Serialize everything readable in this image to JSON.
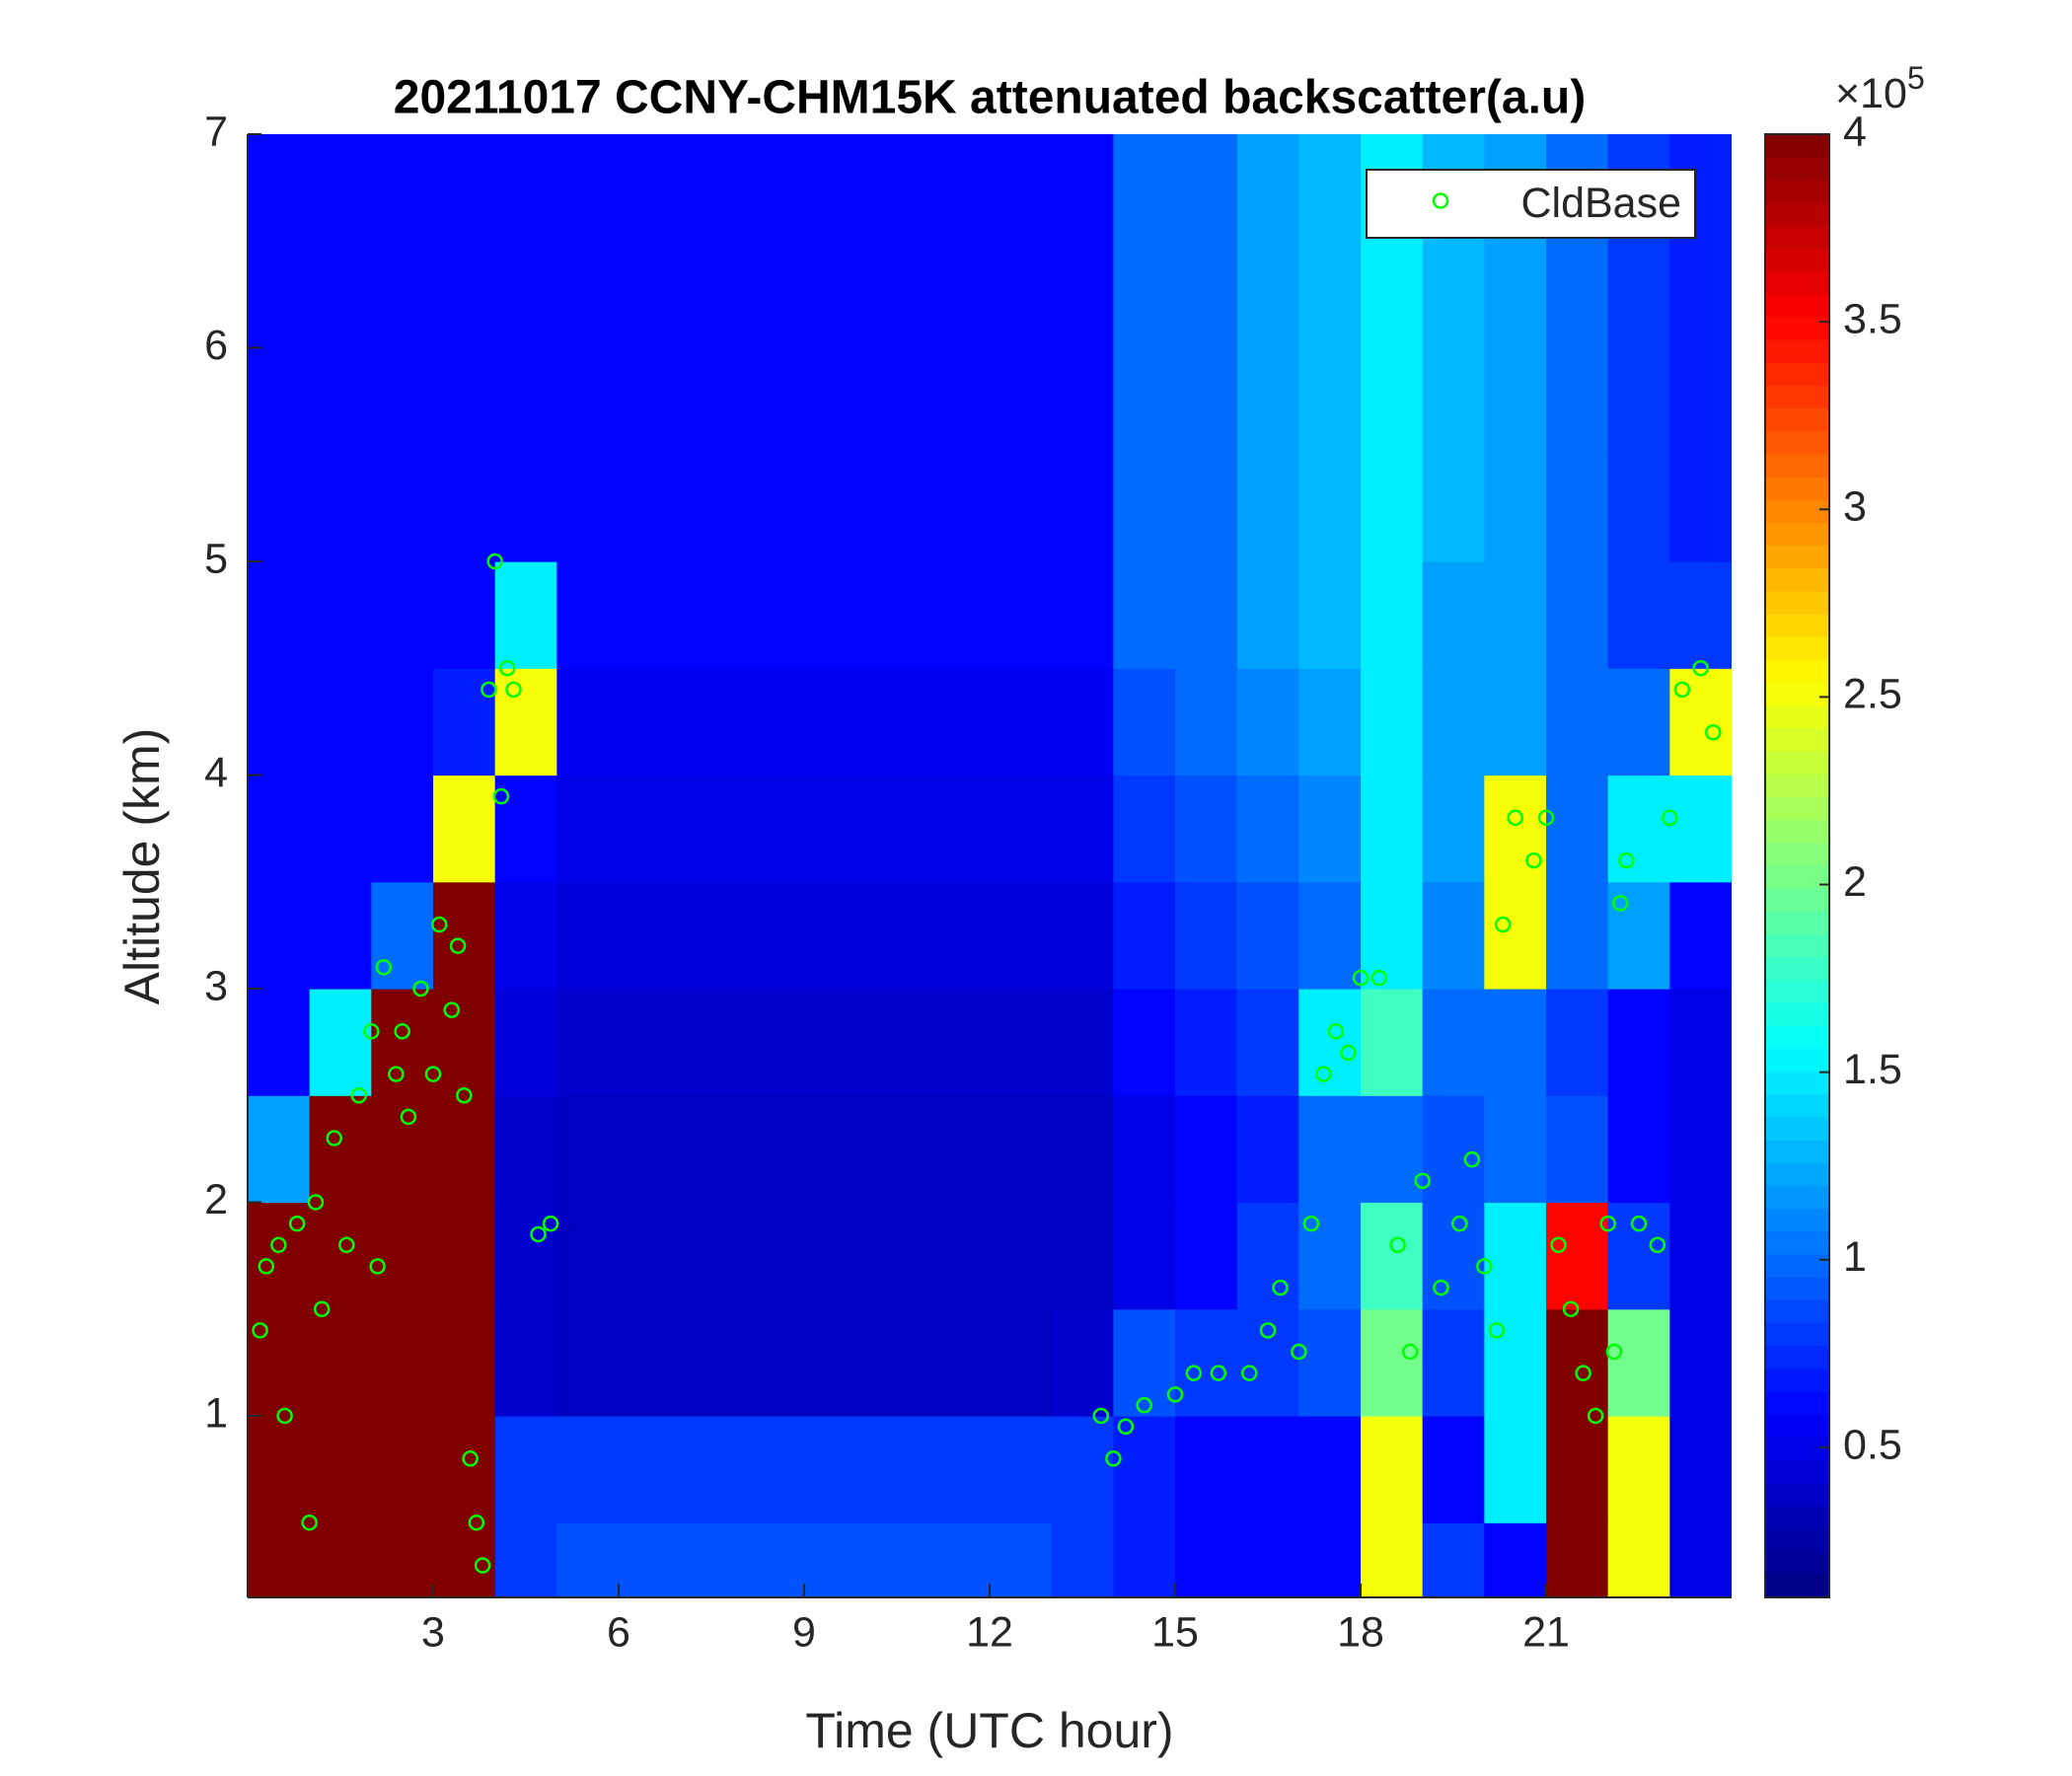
{
  "chart_data": {
    "type": "heatmap",
    "title": "20211017 CCNY-CHM15K attenuated backscatter(a.u)",
    "xlabel": "Time (UTC hour)",
    "ylabel": "Altitude (km)",
    "xlim": [
      0,
      24
    ],
    "xticks": [
      3,
      6,
      9,
      12,
      15,
      18,
      21
    ],
    "ylim": [
      0.15,
      7
    ],
    "yticks": [
      1,
      2,
      3,
      4,
      5,
      6,
      7
    ],
    "colorbar": {
      "colormap": "jet",
      "clim": [
        0.1,
        4
      ],
      "cticks": [
        0.5,
        1,
        1.5,
        2,
        2.5,
        3,
        3.5,
        4
      ],
      "multiplier": {
        "base": "×10",
        "exponent": "5"
      }
    },
    "heatmap": {
      "x_bins": [
        0,
        1,
        2,
        3,
        4,
        5,
        6,
        7,
        8,
        9,
        10,
        11,
        12,
        13,
        14,
        15,
        16,
        17,
        18,
        19,
        20,
        21,
        22,
        23,
        24
      ],
      "y_bins": [
        0.15,
        0.5,
        1,
        1.5,
        2,
        2.5,
        3,
        3.5,
        4,
        4.5,
        5,
        5.5,
        6,
        6.5,
        7
      ],
      "values": [
        [
          4,
          4,
          4,
          4,
          0.8,
          0.9,
          0.9,
          0.9,
          0.9,
          0.9,
          0.9,
          0.9,
          0.9,
          0.8,
          0.7,
          0.6,
          0.6,
          0.6,
          2.5,
          0.8,
          0.6,
          4,
          2.5,
          0.5
        ],
        [
          4,
          4,
          4,
          4,
          0.8,
          0.8,
          0.8,
          0.8,
          0.8,
          0.8,
          0.8,
          0.8,
          0.8,
          0.8,
          0.7,
          0.6,
          0.6,
          0.6,
          2.5,
          0.6,
          1.5,
          4,
          2.5,
          0.5
        ],
        [
          4,
          4,
          4,
          4,
          0.4,
          0.35,
          0.35,
          0.35,
          0.35,
          0.35,
          0.35,
          0.35,
          0.35,
          0.4,
          0.9,
          0.8,
          0.8,
          0.9,
          2,
          0.8,
          1.5,
          4,
          2,
          0.5
        ],
        [
          4,
          4,
          4,
          4,
          0.4,
          0.35,
          0.35,
          0.35,
          0.35,
          0.35,
          0.35,
          0.35,
          0.35,
          0.35,
          0.5,
          0.6,
          0.8,
          1,
          1.8,
          0.9,
          1.5,
          3.5,
          0.8,
          0.5
        ],
        [
          1.2,
          4,
          4,
          4,
          0.4,
          0.35,
          0.35,
          0.35,
          0.35,
          0.35,
          0.35,
          0.35,
          0.35,
          0.35,
          0.5,
          0.6,
          0.7,
          1,
          1,
          0.9,
          1,
          0.9,
          0.6,
          0.5
        ],
        [
          0.6,
          1.5,
          4,
          4,
          0.45,
          0.4,
          0.4,
          0.4,
          0.4,
          0.4,
          0.4,
          0.4,
          0.4,
          0.4,
          0.6,
          0.7,
          0.8,
          1.5,
          1.8,
          1,
          1,
          0.8,
          0.6,
          0.5
        ],
        [
          0.6,
          0.6,
          1,
          4,
          0.5,
          0.45,
          0.45,
          0.45,
          0.45,
          0.45,
          0.45,
          0.45,
          0.45,
          0.45,
          0.7,
          0.8,
          0.9,
          1,
          1.5,
          1.1,
          2.5,
          1,
          1.2,
          0.6
        ],
        [
          0.6,
          0.6,
          0.6,
          2.5,
          0.6,
          0.5,
          0.5,
          0.5,
          0.5,
          0.5,
          0.5,
          0.5,
          0.5,
          0.5,
          0.8,
          0.9,
          1,
          1.1,
          1.5,
          1.2,
          2.5,
          1,
          1.5,
          1.5
        ],
        [
          0.6,
          0.6,
          0.6,
          0.7,
          2.5,
          0.55,
          0.55,
          0.55,
          0.55,
          0.55,
          0.55,
          0.55,
          0.55,
          0.55,
          0.9,
          1,
          1.1,
          1.2,
          1.5,
          1.2,
          1.2,
          1,
          1,
          2.5
        ],
        [
          0.6,
          0.6,
          0.6,
          0.6,
          1.5,
          0.6,
          0.6,
          0.6,
          0.6,
          0.6,
          0.6,
          0.6,
          0.6,
          0.6,
          1,
          1,
          1.2,
          1.3,
          1.5,
          1.2,
          1.2,
          1,
          0.8,
          0.8
        ],
        [
          0.6,
          0.6,
          0.6,
          0.6,
          0.6,
          0.6,
          0.6,
          0.6,
          0.6,
          0.6,
          0.6,
          0.6,
          0.6,
          0.6,
          1,
          1,
          1.2,
          1.3,
          1.5,
          1.3,
          1.2,
          1,
          0.8,
          0.7
        ],
        [
          0.6,
          0.6,
          0.6,
          0.6,
          0.6,
          0.6,
          0.6,
          0.6,
          0.6,
          0.6,
          0.6,
          0.6,
          0.6,
          0.6,
          1,
          1,
          1.2,
          1.3,
          1.5,
          1.3,
          1.2,
          1,
          0.8,
          0.7
        ],
        [
          0.6,
          0.6,
          0.6,
          0.6,
          0.6,
          0.6,
          0.6,
          0.6,
          0.6,
          0.6,
          0.6,
          0.6,
          0.6,
          0.6,
          1,
          1,
          1.2,
          1.3,
          1.5,
          1.3,
          1.2,
          1,
          0.8,
          0.7
        ],
        [
          0.6,
          0.6,
          0.6,
          0.6,
          0.6,
          0.6,
          0.6,
          0.6,
          0.6,
          0.6,
          0.6,
          0.6,
          0.6,
          0.6,
          1,
          1,
          1.2,
          1.3,
          1.5,
          1.3,
          1.2,
          1,
          0.8,
          0.7
        ]
      ]
    },
    "series": [
      {
        "name": "CldBase",
        "color": "#00ff00",
        "x": [
          0.2,
          0.3,
          0.5,
          0.6,
          0.8,
          1.0,
          1.1,
          1.2,
          1.4,
          1.6,
          1.8,
          2.0,
          2.1,
          2.2,
          2.4,
          2.5,
          2.6,
          2.8,
          3.0,
          3.1,
          3.3,
          3.4,
          3.5,
          3.6,
          3.7,
          3.8,
          3.9,
          4.0,
          4.1,
          4.2,
          4.3,
          4.7,
          4.9,
          13.8,
          14.0,
          14.2,
          14.5,
          15.0,
          15.3,
          15.7,
          16.2,
          16.5,
          16.7,
          17.0,
          17.2,
          17.4,
          17.6,
          17.8,
          18.0,
          18.3,
          18.6,
          18.8,
          19.0,
          19.3,
          19.6,
          19.8,
          20.0,
          20.2,
          20.3,
          20.5,
          20.8,
          21.0,
          21.2,
          21.4,
          21.6,
          21.8,
          22.0,
          22.1,
          22.2,
          22.3,
          22.5,
          22.8,
          23.0,
          23.2,
          23.5,
          23.7
        ],
        "y": [
          1.4,
          1.7,
          1.8,
          1.0,
          1.9,
          0.5,
          2.0,
          1.5,
          2.3,
          1.8,
          2.5,
          2.8,
          1.7,
          3.1,
          2.6,
          2.8,
          2.4,
          3.0,
          2.6,
          3.3,
          2.9,
          3.2,
          2.5,
          0.8,
          0.5,
          0.3,
          4.4,
          5.0,
          3.9,
          4.5,
          4.4,
          1.85,
          1.9,
          1.0,
          0.8,
          0.95,
          1.05,
          1.1,
          1.2,
          1.2,
          1.2,
          1.4,
          1.6,
          1.3,
          1.9,
          2.6,
          2.8,
          2.7,
          3.05,
          3.05,
          1.8,
          1.3,
          2.1,
          1.6,
          1.9,
          2.2,
          1.7,
          1.4,
          3.3,
          3.8,
          3.6,
          3.8,
          1.8,
          1.5,
          1.2,
          1.0,
          1.9,
          1.3,
          3.4,
          3.6,
          1.9,
          1.8,
          3.8,
          4.4,
          4.5,
          4.2
        ]
      }
    ],
    "legend": "northeast"
  }
}
